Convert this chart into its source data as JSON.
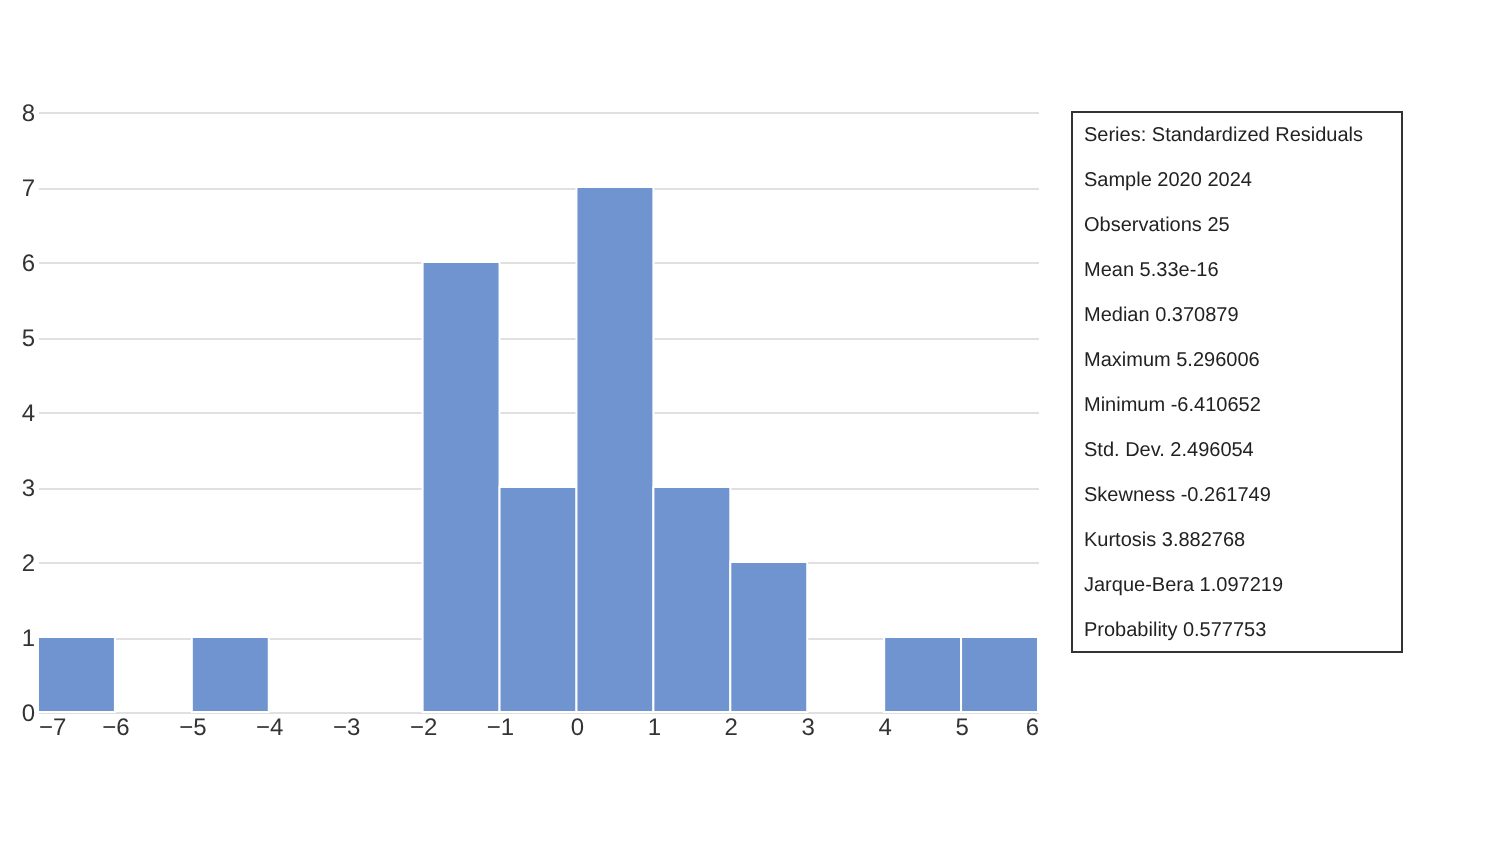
{
  "chart_data": {
    "type": "histogram",
    "bins": [
      -7,
      -6,
      -5,
      -4,
      -3,
      -2,
      -1,
      0,
      1,
      2,
      3,
      4,
      5,
      6
    ],
    "values": [
      1,
      0,
      1,
      0,
      0,
      6,
      3,
      7,
      3,
      2,
      0,
      1,
      1
    ],
    "color": "#7094d0",
    "xlim": [
      -7,
      6
    ],
    "xticks": [
      -7,
      -6,
      -5,
      -4,
      -3,
      -2,
      -1,
      0,
      1,
      2,
      3,
      4,
      5,
      6
    ],
    "ylim": [
      0,
      8
    ],
    "yticks": [
      0,
      1,
      2,
      3,
      4,
      5,
      6,
      7,
      8
    ],
    "grid": "y",
    "annotations": [
      "Series: Standardized Residuals",
      "Sample 2020 2024",
      "Observations 25",
      "Mean 5.33e-16",
      "Median 0.370879",
      "Maximum 5.296006",
      "Minimum -6.410652",
      "Std. Dev. 2.496054",
      "Skewness -0.261749",
      "Kurtosis 3.882768",
      "Jarque-Bera 1.097219",
      "Probability 0.577753"
    ]
  }
}
